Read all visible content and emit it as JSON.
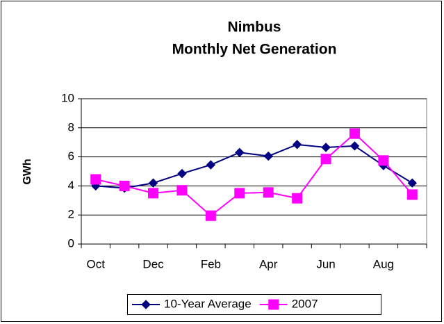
{
  "chart_data": {
    "type": "line",
    "title": "Nimbus",
    "subtitle": "Monthly Net Generation",
    "y_label": "GWh",
    "categories": [
      "Oct",
      null,
      "Dec",
      null,
      "Feb",
      null,
      "Apr",
      null,
      "Jun",
      null,
      "Aug",
      null
    ],
    "series": [
      {
        "name": "10-Year Average",
        "color": "#000080",
        "marker": "diamond",
        "values": [
          4.0,
          3.85,
          4.2,
          4.85,
          5.45,
          6.3,
          6.05,
          6.85,
          6.65,
          6.75,
          5.4,
          4.2
        ]
      },
      {
        "name": "2007",
        "color": "#ff00ff",
        "marker": "square",
        "values": [
          4.45,
          4.0,
          3.5,
          3.7,
          1.95,
          3.5,
          3.55,
          3.15,
          5.85,
          7.6,
          5.75,
          3.4
        ]
      }
    ],
    "ylim": [
      0,
      10
    ],
    "yticks": [
      0,
      2,
      4,
      6,
      8,
      10
    ],
    "grid": true,
    "legend": "bottom"
  }
}
